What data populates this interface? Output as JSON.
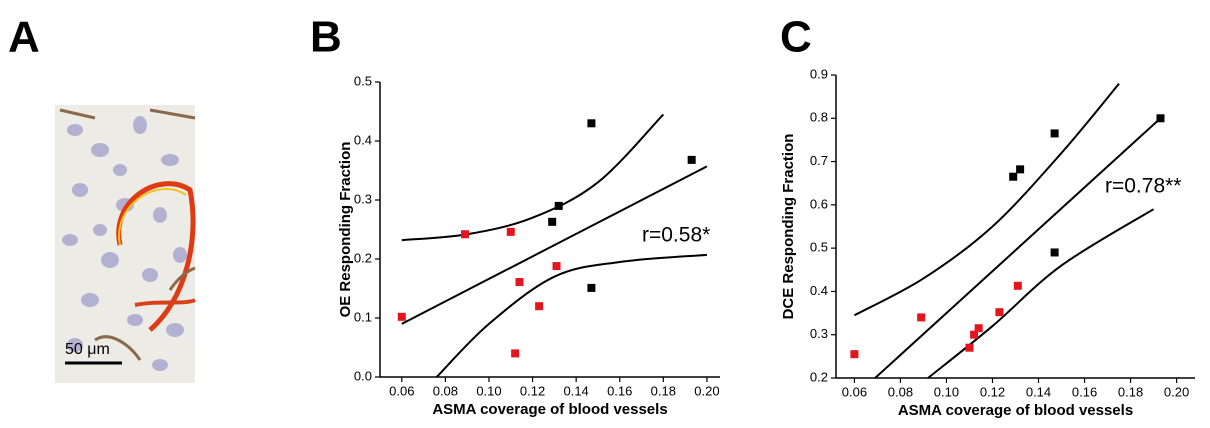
{
  "panel_a": {
    "label": "A",
    "scale_bar": "50 μm"
  },
  "chart_data": [
    {
      "type": "scatter",
      "panel_label": "B",
      "x_label": "ASMA coverage of blood vessels",
      "y_label": "OE Responding Fraction",
      "annotation": "r=0.58*",
      "xlim": [
        0.05,
        0.206
      ],
      "ylim": [
        0,
        0.5
      ],
      "xticks": [
        0.06,
        0.08,
        {
          "value": 0.1,
          "label": "0.10"
        },
        0.12,
        0.14,
        0.16,
        0.18,
        {
          "value": 0.2,
          "label": "0.20"
        }
      ],
      "yticks": [
        {
          "value": 0,
          "label": "0.0"
        },
        0.1,
        0.2,
        0.3,
        0.4,
        0.5
      ],
      "series": [
        {
          "color": "#e3161f",
          "x": [
            0.06,
            0.089,
            0.11,
            0.112,
            0.114,
            0.123,
            0.131
          ],
          "values": [
            0.102,
            0.242,
            0.246,
            0.04,
            0.161,
            0.12,
            0.188
          ]
        },
        {
          "color": "#000000",
          "x": [
            0.129,
            0.132,
            0.147,
            0.147,
            0.193
          ],
          "values": [
            0.263,
            0.29,
            0.151,
            0.43,
            0.368
          ]
        }
      ],
      "curves": [
        {
          "x": [
            0.06,
            0.2
          ],
          "values": [
            0.09,
            0.357
          ]
        },
        {
          "x": [
            0.06,
            0.09,
            0.12,
            0.15,
            0.18
          ],
          "values": [
            0.232,
            0.242,
            0.27,
            0.33,
            0.445
          ]
        },
        {
          "x": [
            0.076,
            0.1,
            0.13,
            0.16,
            0.2
          ],
          "values": [
            0,
            0.09,
            0.17,
            0.195,
            0.207
          ]
        }
      ]
    },
    {
      "type": "scatter",
      "panel_label": "C",
      "x_label": "ASMA coverage of blood vessels",
      "y_label": "DCE Responding Fraction",
      "annotation": "r=0.78**",
      "xlim": [
        0.052,
        0.208
      ],
      "ylim": [
        0.2,
        0.9
      ],
      "xticks": [
        0.06,
        0.08,
        {
          "value": 0.1,
          "label": "0.10"
        },
        0.12,
        0.14,
        0.16,
        0.18,
        {
          "value": 0.2,
          "label": "0.20"
        }
      ],
      "yticks": [
        0.2,
        0.3,
        0.4,
        0.5,
        0.6,
        0.7,
        0.8,
        0.9
      ],
      "series": [
        {
          "color": "#e3161f",
          "x": [
            0.06,
            0.089,
            0.11,
            0.112,
            0.114,
            0.123,
            0.131
          ],
          "values": [
            0.255,
            0.34,
            0.27,
            0.3,
            0.315,
            0.352,
            0.413
          ]
        },
        {
          "color": "#000000",
          "x": [
            0.129,
            0.132,
            0.147,
            0.147,
            0.193
          ],
          "values": [
            0.665,
            0.682,
            0.765,
            0.49,
            0.8
          ]
        }
      ],
      "curves": [
        {
          "x": [
            0.069,
            0.193
          ],
          "values": [
            0.2,
            0.8
          ]
        },
        {
          "x": [
            0.06,
            0.09,
            0.12,
            0.15,
            0.175
          ],
          "values": [
            0.345,
            0.43,
            0.55,
            0.72,
            0.88
          ]
        },
        {
          "x": [
            0.092,
            0.12,
            0.15,
            0.19
          ],
          "values": [
            0.2,
            0.32,
            0.46,
            0.59
          ]
        }
      ]
    }
  ]
}
